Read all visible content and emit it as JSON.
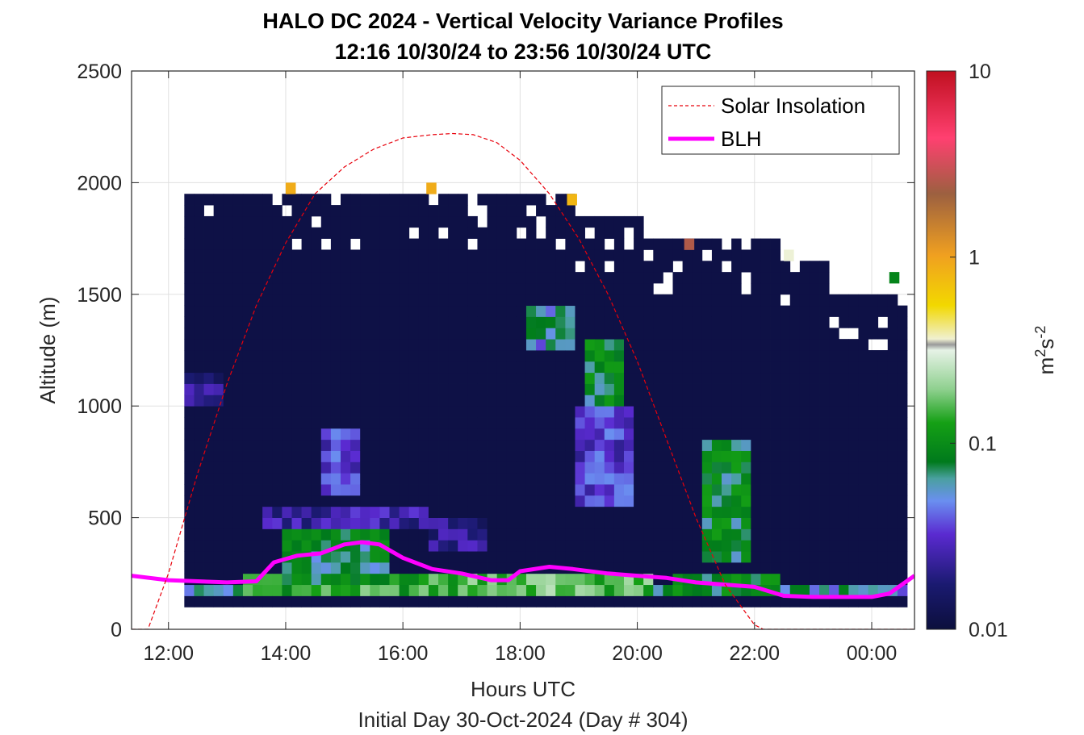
{
  "chart_data": {
    "type": "heatmap",
    "title": "HALO DC 2024 - Vertical Velocity Variance Profiles",
    "subtitle": "12:16 10/30/24 to 23:56 10/30/24  UTC",
    "xlabel": "Hours UTC",
    "xlabel2": "Initial Day 30-Oct-2024 (Day # 304)",
    "ylabel": "Altitude (m)",
    "colorbar_label": "m",
    "colorbar_label_sup1": "2",
    "colorbar_label_mid": "s",
    "colorbar_label_sup2": "-2",
    "x_range_hours": [
      11.37,
      24.73
    ],
    "y_range_m": [
      0,
      2500
    ],
    "x_ticks": [
      {
        "hour": 12,
        "label": "12:00"
      },
      {
        "hour": 14,
        "label": "14:00"
      },
      {
        "hour": 16,
        "label": "16:00"
      },
      {
        "hour": 18,
        "label": "18:00"
      },
      {
        "hour": 20,
        "label": "20:00"
      },
      {
        "hour": 22,
        "label": "22:00"
      },
      {
        "hour": 24,
        "label": "00:00"
      }
    ],
    "y_ticks": [
      {
        "value": 0,
        "label": "0"
      },
      {
        "value": 500,
        "label": "500"
      },
      {
        "value": 1000,
        "label": "1000"
      },
      {
        "value": 1500,
        "label": "1500"
      },
      {
        "value": 2000,
        "label": "2000"
      },
      {
        "value": 2500,
        "label": "2500"
      }
    ],
    "colorbar_scale": "log",
    "colorbar_range": [
      0.01,
      10
    ],
    "colorbar_ticks": [
      {
        "value": 0.01,
        "label": "0.01"
      },
      {
        "value": 0.1,
        "label": "0.1"
      },
      {
        "value": 1,
        "label": "1"
      },
      {
        "value": 10,
        "label": "10"
      }
    ],
    "grid": true,
    "legend_position": "top-right",
    "legend": [
      {
        "name": "Solar Insolation",
        "color": "#e8000b",
        "style": "dashed"
      },
      {
        "name": "BLH",
        "color": "#ff00ff",
        "style": "solid"
      }
    ],
    "heatmap": {
      "time_start_hour": 12.27,
      "time_end_hour": 24.47,
      "time_step_hours": 0.1667,
      "alt_start_m": 100,
      "alt_step_m": 50,
      "background_value": 0.011,
      "regions": [
        {
          "t": [
            12.27,
            24.47
          ],
          "alt": [
            100,
            150
          ],
          "value": 0.011
        },
        {
          "t": [
            12.27,
            24.47
          ],
          "alt": [
            150,
            200
          ],
          "value": 0.06
        },
        {
          "t": [
            13.2,
            18.9
          ],
          "alt": [
            150,
            250
          ],
          "value": 0.14
        },
        {
          "t": [
            13.8,
            15.7
          ],
          "alt": [
            200,
            450
          ],
          "value": 0.08
        },
        {
          "t": [
            13.5,
            16.4
          ],
          "alt": [
            450,
            550
          ],
          "value": 0.025
        },
        {
          "t": [
            16.4,
            17.4
          ],
          "alt": [
            350,
            500
          ],
          "value": 0.022
        },
        {
          "t": [
            17.0,
            19.0
          ],
          "alt": [
            150,
            250
          ],
          "value": 0.18
        },
        {
          "t": [
            19.0,
            20.2
          ],
          "alt": [
            150,
            250
          ],
          "value": 0.16
        },
        {
          "t": [
            19.0,
            19.7
          ],
          "alt": [
            900,
            1300
          ],
          "value": 0.09
        },
        {
          "t": [
            18.9,
            19.9
          ],
          "alt": [
            550,
            1000
          ],
          "value": 0.035
        },
        {
          "t": [
            18.0,
            18.8
          ],
          "alt": [
            1250,
            1450
          ],
          "value": 0.06
        },
        {
          "t": [
            14.5,
            15.2
          ],
          "alt": [
            600,
            900
          ],
          "value": 0.035
        },
        {
          "t": [
            21.0,
            21.9
          ],
          "alt": [
            300,
            850
          ],
          "value": 0.09
        },
        {
          "t": [
            20.6,
            22.3
          ],
          "alt": [
            150,
            250
          ],
          "value": 0.09
        },
        {
          "t": [
            12.27,
            12.8
          ],
          "alt": [
            1000,
            1150
          ],
          "value": 0.022
        }
      ],
      "top_m": [
        {
          "t": 12.27,
          "alt": 1950
        },
        {
          "t": 18.9,
          "alt": 1850
        },
        {
          "t": 20.0,
          "alt": 1750
        },
        {
          "t": 22.3,
          "alt": 1650
        },
        {
          "t": 23.2,
          "alt": 1500
        }
      ],
      "special_cells": [
        {
          "t": 14.0,
          "alt": 1950,
          "value": 0.9
        },
        {
          "t": 16.4,
          "alt": 1950,
          "value": 0.9
        },
        {
          "t": 18.8,
          "alt": 1900,
          "value": 0.8
        },
        {
          "t": 20.8,
          "alt": 1700,
          "value": 2.5
        },
        {
          "t": 22.5,
          "alt": 1650,
          "value": 0.35
        },
        {
          "t": 24.3,
          "alt": 1550,
          "value": 0.09
        }
      ]
    },
    "series": [
      {
        "name": "BLH",
        "x": [
          11.37,
          12.0,
          12.5,
          13.0,
          13.5,
          13.8,
          14.2,
          14.6,
          15.0,
          15.3,
          15.6,
          16.0,
          16.5,
          17.0,
          17.5,
          17.8,
          18.0,
          18.5,
          18.9,
          19.5,
          20.0,
          20.5,
          21.0,
          21.5,
          22.0,
          22.5,
          23.0,
          23.5,
          24.0,
          24.3,
          24.73
        ],
        "y": [
          240,
          220,
          215,
          210,
          215,
          300,
          330,
          340,
          380,
          390,
          380,
          320,
          270,
          250,
          220,
          220,
          260,
          280,
          270,
          250,
          240,
          230,
          210,
          200,
          190,
          150,
          145,
          145,
          145,
          160,
          240
        ]
      },
      {
        "name": "Solar Insolation",
        "x": [
          11.37,
          11.65,
          12.0,
          12.5,
          13.0,
          13.5,
          14.0,
          14.5,
          15.0,
          15.5,
          16.0,
          16.5,
          16.85,
          17.2,
          17.6,
          18.0,
          18.5,
          19.0,
          19.5,
          20.0,
          20.5,
          21.0,
          21.5,
          22.0,
          22.15,
          24.73
        ],
        "y": [
          0,
          0,
          250,
          700,
          1100,
          1450,
          1730,
          1950,
          2070,
          2150,
          2200,
          2215,
          2220,
          2215,
          2180,
          2100,
          1950,
          1750,
          1500,
          1200,
          850,
          500,
          200,
          20,
          0,
          0
        ]
      }
    ]
  }
}
